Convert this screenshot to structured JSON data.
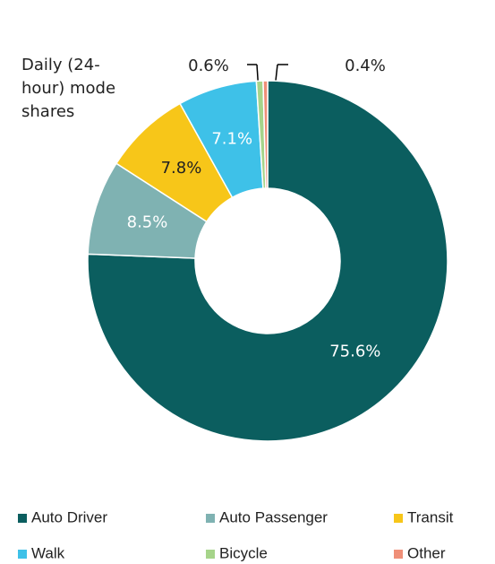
{
  "chart_data": {
    "type": "pie",
    "donut": true,
    "annotation": "Daily (24-hour) mode shares",
    "categories": [
      "Auto Driver",
      "Auto Passenger",
      "Transit",
      "Walk",
      "Bicycle",
      "Other"
    ],
    "values": [
      75.6,
      8.5,
      7.8,
      7.1,
      0.6,
      0.4
    ],
    "value_labels": [
      "75.6%",
      "8.5%",
      "7.8%",
      "7.1%",
      "0.6%",
      "0.4%"
    ],
    "colors": [
      "#0b5e5f",
      "#7fb2b2",
      "#f7c619",
      "#3ec1e8",
      "#a6d48a",
      "#ef8f78"
    ],
    "legend": "bottom"
  }
}
